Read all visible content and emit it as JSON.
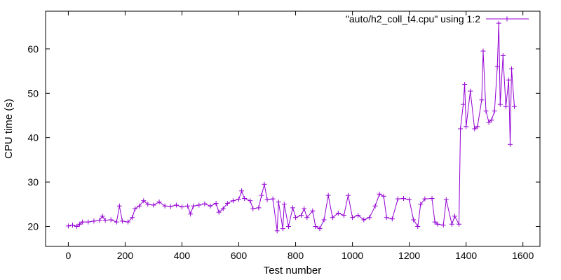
{
  "chart_data": {
    "type": "line",
    "title": "",
    "xlabel": "Test number",
    "ylabel": "CPU time (s)",
    "xlim": [
      -80,
      1660
    ],
    "ylim": [
      15.5,
      68.5
    ],
    "xticks": [
      0,
      200,
      400,
      600,
      800,
      1000,
      1200,
      1400,
      1600
    ],
    "yticks": [
      20,
      30,
      40,
      50,
      60
    ],
    "grid": false,
    "legend_position": "top-right",
    "line_color": "#9400d3",
    "marker": "plus",
    "series": [
      {
        "name": "\"auto/h2_coll_t4.cpu\" using 1:2",
        "points": [
          [
            0,
            20.1
          ],
          [
            15,
            20.3
          ],
          [
            30,
            20.0
          ],
          [
            40,
            20.5
          ],
          [
            50,
            21.0
          ],
          [
            70,
            21.0
          ],
          [
            90,
            21.2
          ],
          [
            110,
            21.4
          ],
          [
            120,
            22.3
          ],
          [
            130,
            21.4
          ],
          [
            150,
            21.5
          ],
          [
            170,
            21.0
          ],
          [
            180,
            24.6
          ],
          [
            190,
            21.2
          ],
          [
            210,
            21.0
          ],
          [
            225,
            22.0
          ],
          [
            235,
            24.0
          ],
          [
            250,
            24.6
          ],
          [
            265,
            25.8
          ],
          [
            280,
            25.0
          ],
          [
            300,
            24.8
          ],
          [
            320,
            25.5
          ],
          [
            340,
            24.6
          ],
          [
            360,
            24.5
          ],
          [
            380,
            24.8
          ],
          [
            400,
            24.4
          ],
          [
            420,
            24.6
          ],
          [
            430,
            22.8
          ],
          [
            440,
            24.6
          ],
          [
            460,
            24.8
          ],
          [
            480,
            25.1
          ],
          [
            500,
            24.6
          ],
          [
            520,
            25.2
          ],
          [
            530,
            23.2
          ],
          [
            545,
            24.0
          ],
          [
            560,
            25.2
          ],
          [
            580,
            25.8
          ],
          [
            600,
            26.1
          ],
          [
            610,
            28.0
          ],
          [
            620,
            26.3
          ],
          [
            640,
            25.8
          ],
          [
            650,
            24.0
          ],
          [
            670,
            24.2
          ],
          [
            680,
            27.0
          ],
          [
            690,
            29.5
          ],
          [
            700,
            26.0
          ],
          [
            720,
            26.2
          ],
          [
            735,
            19.0
          ],
          [
            740,
            25.5
          ],
          [
            755,
            19.5
          ],
          [
            760,
            25.0
          ],
          [
            775,
            20.0
          ],
          [
            790,
            24.2
          ],
          [
            800,
            22.0
          ],
          [
            820,
            22.5
          ],
          [
            830,
            24.0
          ],
          [
            840,
            22.0
          ],
          [
            860,
            23.5
          ],
          [
            870,
            20.0
          ],
          [
            885,
            19.5
          ],
          [
            900,
            21.5
          ],
          [
            915,
            27.0
          ],
          [
            930,
            22.0
          ],
          [
            950,
            23.0
          ],
          [
            970,
            22.5
          ],
          [
            985,
            27.0
          ],
          [
            1000,
            22.0
          ],
          [
            1020,
            22.5
          ],
          [
            1040,
            21.5
          ],
          [
            1060,
            22.0
          ],
          [
            1080,
            24.6
          ],
          [
            1095,
            27.3
          ],
          [
            1110,
            26.8
          ],
          [
            1120,
            22.0
          ],
          [
            1140,
            21.7
          ],
          [
            1160,
            26.2
          ],
          [
            1180,
            26.3
          ],
          [
            1200,
            26.0
          ],
          [
            1215,
            21.5
          ],
          [
            1230,
            20.0
          ],
          [
            1240,
            25.0
          ],
          [
            1255,
            26.2
          ],
          [
            1280,
            26.3
          ],
          [
            1290,
            21.0
          ],
          [
            1300,
            20.5
          ],
          [
            1320,
            20.3
          ],
          [
            1330,
            26.0
          ],
          [
            1350,
            20.5
          ],
          [
            1360,
            22.3
          ],
          [
            1375,
            20.5
          ],
          [
            1380,
            42.0
          ],
          [
            1390,
            47.5
          ],
          [
            1395,
            52.0
          ],
          [
            1400,
            42.5
          ],
          [
            1415,
            50.5
          ],
          [
            1430,
            42.0
          ],
          [
            1440,
            42.5
          ],
          [
            1455,
            48.5
          ],
          [
            1460,
            59.5
          ],
          [
            1470,
            46.0
          ],
          [
            1480,
            43.5
          ],
          [
            1490,
            44.0
          ],
          [
            1500,
            46.0
          ],
          [
            1510,
            56.0
          ],
          [
            1515,
            65.8
          ],
          [
            1520,
            47.5
          ],
          [
            1530,
            58.5
          ],
          [
            1540,
            47.0
          ],
          [
            1550,
            53.0
          ],
          [
            1555,
            38.5
          ],
          [
            1560,
            55.5
          ],
          [
            1570,
            47.0
          ]
        ]
      }
    ]
  }
}
